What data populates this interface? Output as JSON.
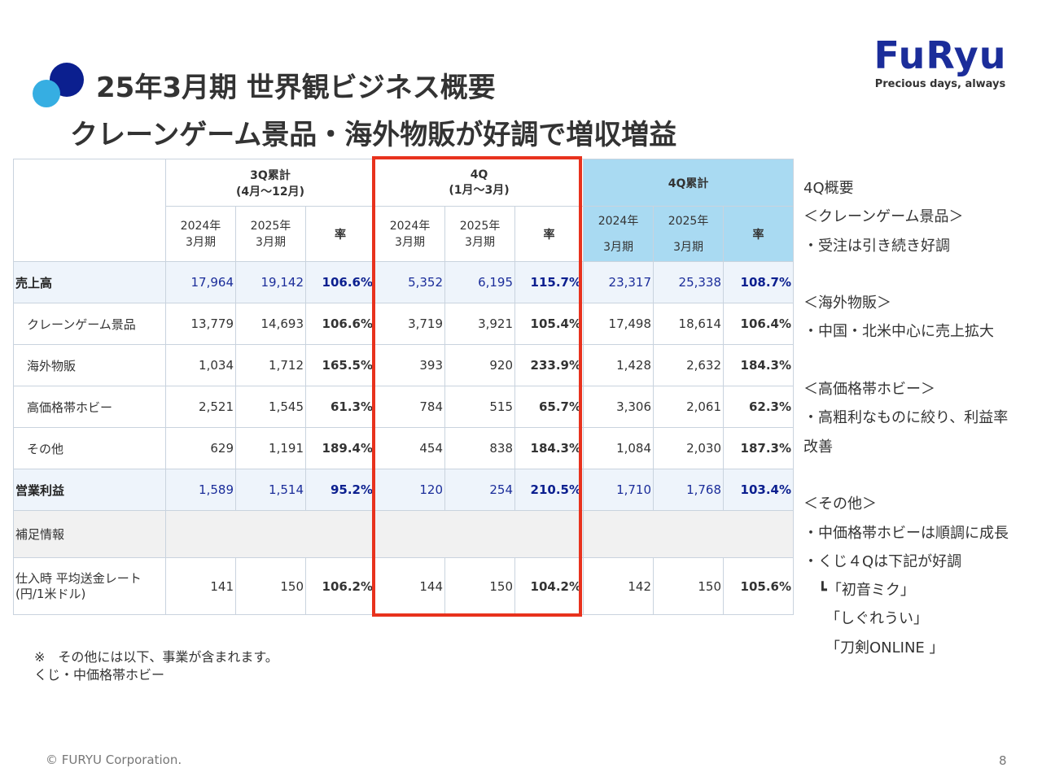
{
  "header": {
    "title": "25年3月期 世界観ビジネス概要",
    "subtitle": "クレーンゲーム景品・海外物販が好調で増収増益"
  },
  "logo": {
    "text": "FuRyu",
    "tagline": "Precious days, always",
    "color": "#1b2d9a"
  },
  "table": {
    "groups": [
      {
        "title": "3Q累計",
        "sub": "(4月〜12月)"
      },
      {
        "title": "4Q",
        "sub": "(1月〜3月)"
      },
      {
        "title": "4Q累計",
        "sub": ""
      }
    ],
    "cols": {
      "a_line1": "2024年",
      "a_line2": "3月期",
      "b_line1": "2025年",
      "b_line2": "3月期",
      "rate": "率"
    },
    "rows": [
      {
        "label": "売上高",
        "v": [
          "17,964",
          "19,142",
          "106.6%",
          "5,352",
          "6,195",
          "115.7%",
          "23,317",
          "25,338",
          "108.7%"
        ]
      },
      {
        "label": "クレーンゲーム景品",
        "v": [
          "13,779",
          "14,693",
          "106.6%",
          "3,719",
          "3,921",
          "105.4%",
          "17,498",
          "18,614",
          "106.4%"
        ]
      },
      {
        "label": "海外物販",
        "v": [
          "1,034",
          "1,712",
          "165.5%",
          "393",
          "920",
          "233.9%",
          "1,428",
          "2,632",
          "184.3%"
        ]
      },
      {
        "label": "高価格帯ホビー",
        "v": [
          "2,521",
          "1,545",
          "61.3%",
          "784",
          "515",
          "65.7%",
          "3,306",
          "2,061",
          "62.3%"
        ]
      },
      {
        "label": "その他",
        "v": [
          "629",
          "1,191",
          "189.4%",
          "454",
          "838",
          "184.3%",
          "1,084",
          "2,030",
          "187.3%"
        ]
      },
      {
        "label": "営業利益",
        "v": [
          "1,589",
          "1,514",
          "95.2%",
          "120",
          "254",
          "210.5%",
          "1,710",
          "1,768",
          "103.4%"
        ]
      },
      {
        "label": "補足情報",
        "v": []
      },
      {
        "label_line1": "仕入時 平均送金レート",
        "label_line2": "(円/1米ドル)",
        "v": [
          "141",
          "150",
          "106.2%",
          "144",
          "150",
          "104.2%",
          "142",
          "150",
          "105.6%"
        ]
      }
    ]
  },
  "side": {
    "lines": [
      "4Q概要",
      "＜クレーンゲーム景品＞",
      "・受注は引き続き好調",
      "",
      "＜海外物販＞",
      "・中国・北米中心に売上拡大",
      "",
      "＜高価格帯ホビー＞",
      "・高粗利なものに絞り、利益率",
      "改善",
      "",
      "＜その他＞",
      "・中価格帯ホビーは順調に成長",
      "・くじ４Qは下記が好調",
      "　┗「初音ミク」",
      "　　「しぐれうい」",
      "　　「刀剣ONLINE 」"
    ]
  },
  "note": {
    "line1": "※　その他には以下、事業が含まれます。",
    "line2": "くじ・中価格帯ホビー"
  },
  "footer": {
    "copyright": "© FURYU Corporation.",
    "page": "8"
  }
}
